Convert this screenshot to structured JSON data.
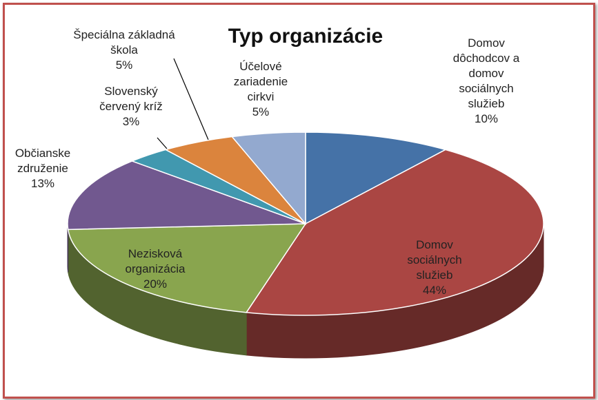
{
  "chart_data": {
    "type": "pie",
    "title": "Typ organizácie",
    "categories": [
      "Domov dôchodcov a domov sociálnych služieb",
      "Domov sociálnych služieb",
      "Nezisková organizácia",
      "Občianske združenie",
      "Slovenský červený kríž",
      "Špeciálna základná škola",
      "Účelové zariadenie cirkvi"
    ],
    "values": [
      10,
      44,
      20,
      13,
      3,
      5,
      5
    ],
    "value_labels": [
      "10%",
      "44%",
      "20%",
      "13%",
      "3%",
      "5%",
      "5%"
    ],
    "colors": [
      "#4572a7",
      "#aa4643",
      "#89a54e",
      "#71588f",
      "#4198af",
      "#db843d",
      "#93a9cf"
    ]
  }
}
